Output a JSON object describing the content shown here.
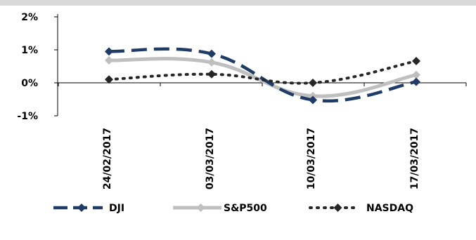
{
  "chart_data": {
    "type": "line",
    "categories": [
      "24/02/2017",
      "03/03/2017",
      "10/03/2017",
      "17/03/2017"
    ],
    "series": [
      {
        "name": "DJI",
        "values": [
          0.95,
          0.88,
          -0.52,
          0.03
        ],
        "color": "#1f3b66",
        "style": "dashed",
        "marker": "diamond"
      },
      {
        "name": "S&P500",
        "values": [
          0.68,
          0.62,
          -0.4,
          0.24
        ],
        "color": "#bfbfbf",
        "style": "solid",
        "marker": "diamond"
      },
      {
        "name": "NASDAQ",
        "values": [
          0.1,
          0.26,
          0.0,
          0.66
        ],
        "color": "#262626",
        "style": "dotted",
        "marker": "diamond"
      }
    ],
    "yticks": [
      "2%",
      "1%",
      "0%",
      "-1%"
    ],
    "ylim": [
      -1,
      2
    ],
    "y_unit": "%",
    "legend_position": "bottom",
    "grid": false,
    "title": "",
    "xlabel": "",
    "ylabel": ""
  }
}
